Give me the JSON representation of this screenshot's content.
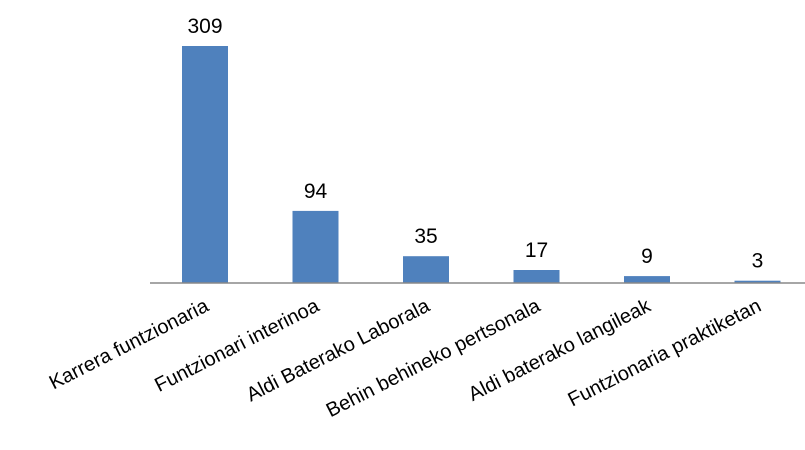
{
  "chart_data": {
    "type": "bar",
    "categories": [
      "Karrera funtzionaria",
      "Funtzionari interinoa",
      "Aldi Baterako Laborala",
      "Behin behineko pertsonala",
      "Aldi baterako langileak",
      "Funtzionaria praktiketan"
    ],
    "values": [
      309,
      94,
      35,
      17,
      9,
      3
    ],
    "data_labels": [
      "309",
      "94",
      "35",
      "17",
      "9",
      "3"
    ],
    "title": "",
    "xlabel": "",
    "ylabel": "",
    "ylim": [
      0,
      309
    ],
    "grid": false,
    "legend": "none",
    "bar_color": "#4F81BD",
    "axis_color": "#888888"
  }
}
